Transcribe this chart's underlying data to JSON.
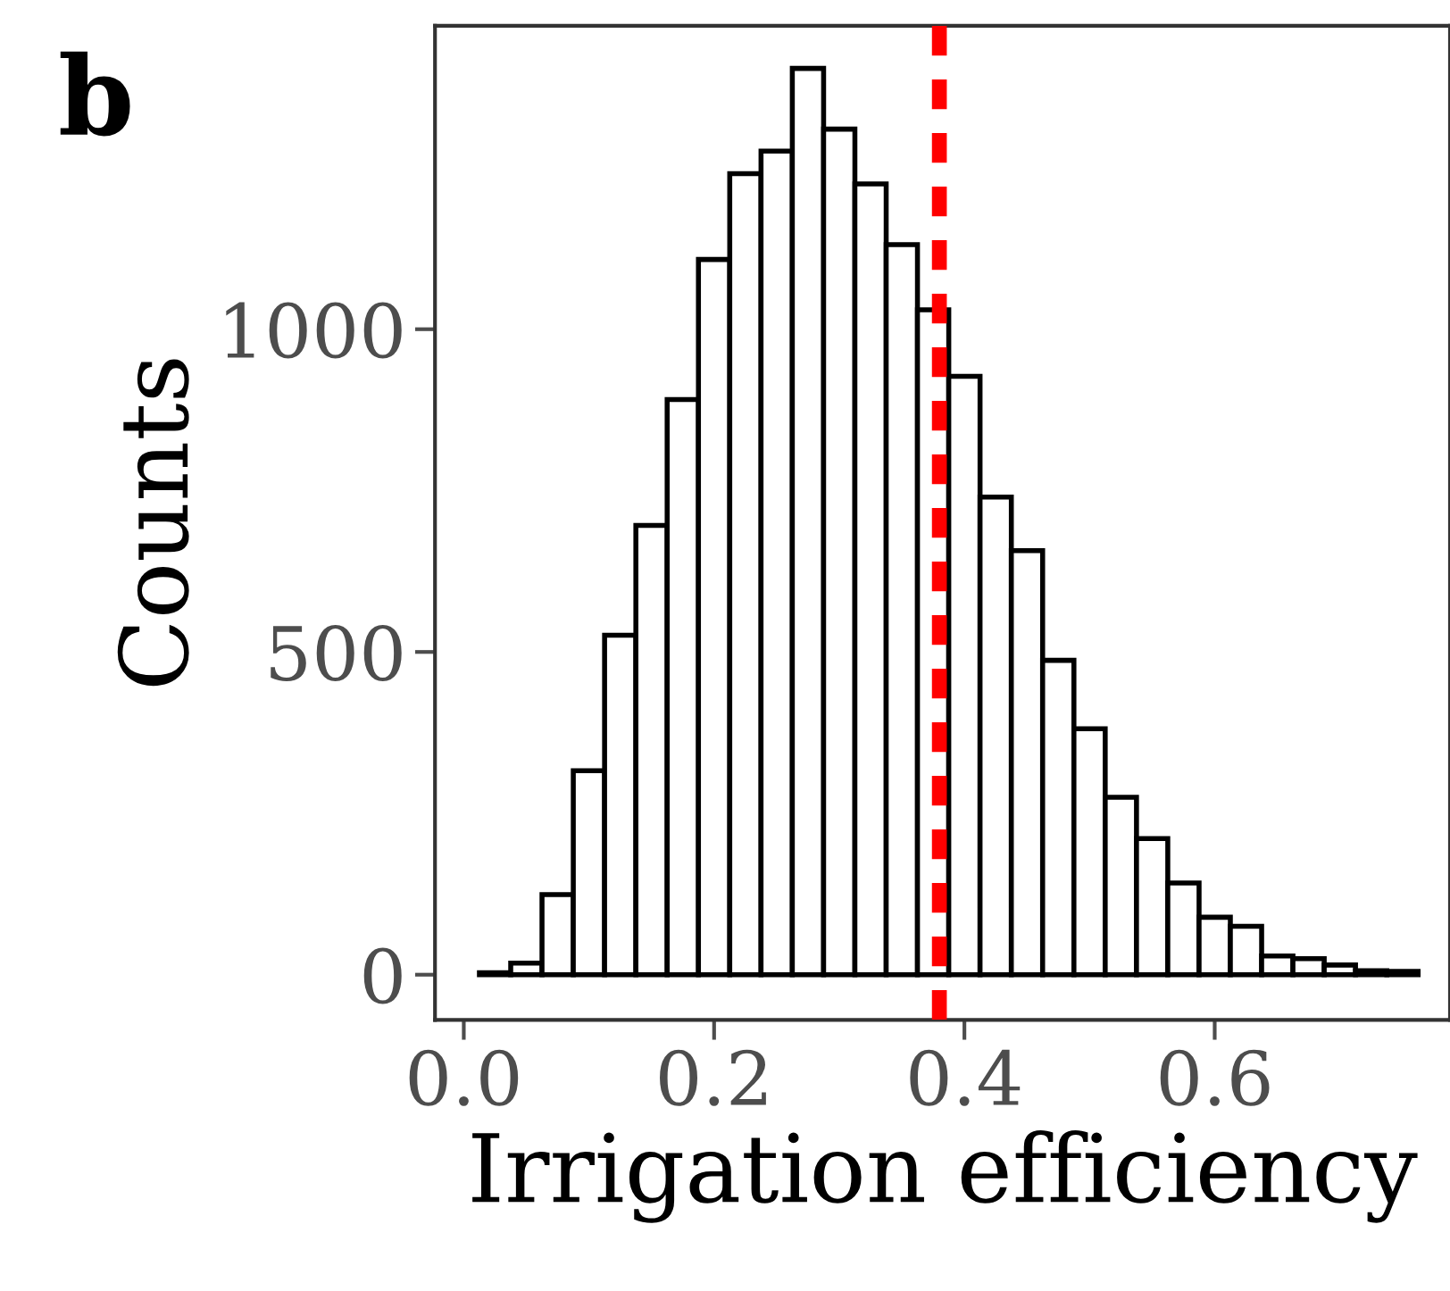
{
  "chart_data": {
    "type": "histogram",
    "xlabel": "Irrigation efficiency",
    "ylabel": "Counts",
    "annotations": [
      "b"
    ],
    "bins": [
      0.0125,
      0.0375,
      0.0625,
      0.0875,
      0.1125,
      0.1375,
      0.1625,
      0.1875,
      0.2125,
      0.2375,
      0.2625,
      0.2875,
      0.3125,
      0.3375,
      0.3625,
      0.3875,
      0.4125,
      0.4375,
      0.4625,
      0.4875,
      0.5125,
      0.5375,
      0.5625,
      0.5875,
      0.6125,
      0.6375,
      0.6625,
      0.6875,
      0.7125,
      0.7375,
      0.7625
    ],
    "values": [
      3,
      18,
      124,
      316,
      526,
      696,
      891,
      1108,
      1241,
      1276,
      1404,
      1310,
      1225,
      1131,
      1030,
      927,
      740,
      657,
      487,
      381,
      275,
      211,
      142,
      89,
      75,
      29,
      25,
      15,
      6,
      5
    ],
    "color": "#ffffff",
    "xlim": [
      -0.023,
      0.788
    ],
    "ylim": [
      -70,
      1470
    ],
    "xticks": [
      {
        "value": 0,
        "label": "0.0"
      },
      0.2,
      0.4,
      0.6
    ],
    "yticks": [
      0,
      500,
      1000
    ],
    "ref_lines": [
      {
        "axis": "x",
        "value": 0.38,
        "color": "#ff0000",
        "line_style": "dashed"
      }
    ],
    "grid": false,
    "legend": false
  }
}
